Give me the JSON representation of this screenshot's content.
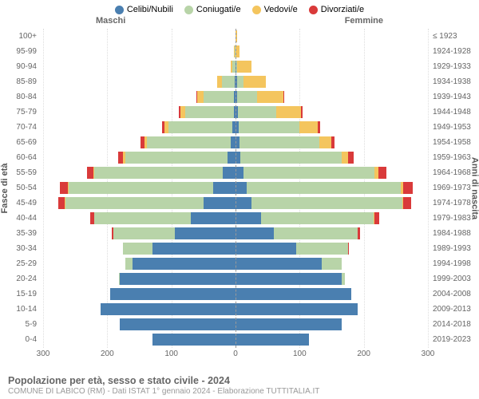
{
  "legend": [
    {
      "label": "Celibi/Nubili",
      "color": "#4a7fb0"
    },
    {
      "label": "Coniugati/e",
      "color": "#b8d4a8"
    },
    {
      "label": "Vedovi/e",
      "color": "#f4c55e"
    },
    {
      "label": "Divorziati/e",
      "color": "#d93a3a"
    }
  ],
  "header_male": "Maschi",
  "header_female": "Femmine",
  "y_title_left": "Fasce di età",
  "y_title_right": "Anni di nascita",
  "x_max": 300,
  "x_ticks": [
    300,
    200,
    100,
    0,
    100,
    200,
    300
  ],
  "title": "Popolazione per età, sesso e stato civile - 2024",
  "subtitle": "COMUNE DI LABICO (RM) - Dati ISTAT 1° gennaio 2024 - Elaborazione TUTTITALIA.IT",
  "colors": {
    "single": "#4a7fb0",
    "married": "#b8d4a8",
    "widowed": "#f4c55e",
    "divorced": "#d93a3a",
    "grid": "#dddddd",
    "center": "#999999",
    "text": "#666666"
  },
  "rows": [
    {
      "age": "100+",
      "birth": "≤ 1923",
      "m": {
        "s": 0,
        "c": 0,
        "w": 0,
        "d": 0
      },
      "f": {
        "s": 0,
        "c": 0,
        "w": 2,
        "d": 0
      }
    },
    {
      "age": "95-99",
      "birth": "1924-1928",
      "m": {
        "s": 0,
        "c": 1,
        "w": 1,
        "d": 0
      },
      "f": {
        "s": 0,
        "c": 0,
        "w": 6,
        "d": 0
      }
    },
    {
      "age": "90-94",
      "birth": "1929-1933",
      "m": {
        "s": 0,
        "c": 5,
        "w": 3,
        "d": 0
      },
      "f": {
        "s": 1,
        "c": 2,
        "w": 22,
        "d": 0
      }
    },
    {
      "age": "85-89",
      "birth": "1934-1938",
      "m": {
        "s": 1,
        "c": 20,
        "w": 8,
        "d": 0
      },
      "f": {
        "s": 2,
        "c": 10,
        "w": 35,
        "d": 0
      }
    },
    {
      "age": "80-84",
      "birth": "1939-1943",
      "m": {
        "s": 2,
        "c": 48,
        "w": 10,
        "d": 1
      },
      "f": {
        "s": 3,
        "c": 30,
        "w": 42,
        "d": 1
      }
    },
    {
      "age": "75-79",
      "birth": "1944-1948",
      "m": {
        "s": 3,
        "c": 75,
        "w": 8,
        "d": 2
      },
      "f": {
        "s": 4,
        "c": 60,
        "w": 38,
        "d": 2
      }
    },
    {
      "age": "70-74",
      "birth": "1949-1953",
      "m": {
        "s": 5,
        "c": 100,
        "w": 6,
        "d": 4
      },
      "f": {
        "s": 5,
        "c": 95,
        "w": 28,
        "d": 4
      }
    },
    {
      "age": "65-69",
      "birth": "1954-1958",
      "m": {
        "s": 8,
        "c": 130,
        "w": 4,
        "d": 6
      },
      "f": {
        "s": 6,
        "c": 125,
        "w": 18,
        "d": 6
      }
    },
    {
      "age": "60-64",
      "birth": "1959-1963",
      "m": {
        "s": 12,
        "c": 160,
        "w": 3,
        "d": 8
      },
      "f": {
        "s": 8,
        "c": 158,
        "w": 10,
        "d": 8
      }
    },
    {
      "age": "55-59",
      "birth": "1964-1968",
      "m": {
        "s": 20,
        "c": 200,
        "w": 2,
        "d": 10
      },
      "f": {
        "s": 12,
        "c": 205,
        "w": 6,
        "d": 12
      }
    },
    {
      "age": "50-54",
      "birth": "1969-1973",
      "m": {
        "s": 35,
        "c": 225,
        "w": 2,
        "d": 12
      },
      "f": {
        "s": 18,
        "c": 240,
        "w": 4,
        "d": 14
      }
    },
    {
      "age": "45-49",
      "birth": "1974-1978",
      "m": {
        "s": 50,
        "c": 215,
        "w": 1,
        "d": 10
      },
      "f": {
        "s": 25,
        "c": 235,
        "w": 2,
        "d": 12
      }
    },
    {
      "age": "40-44",
      "birth": "1979-1983",
      "m": {
        "s": 70,
        "c": 150,
        "w": 0,
        "d": 6
      },
      "f": {
        "s": 40,
        "c": 175,
        "w": 1,
        "d": 8
      }
    },
    {
      "age": "35-39",
      "birth": "1984-1988",
      "m": {
        "s": 95,
        "c": 95,
        "w": 0,
        "d": 3
      },
      "f": {
        "s": 60,
        "c": 130,
        "w": 0,
        "d": 4
      }
    },
    {
      "age": "30-34",
      "birth": "1989-1993",
      "m": {
        "s": 130,
        "c": 45,
        "w": 0,
        "d": 1
      },
      "f": {
        "s": 95,
        "c": 80,
        "w": 0,
        "d": 2
      }
    },
    {
      "age": "25-29",
      "birth": "1994-1998",
      "m": {
        "s": 160,
        "c": 12,
        "w": 0,
        "d": 0
      },
      "f": {
        "s": 135,
        "c": 30,
        "w": 0,
        "d": 0
      }
    },
    {
      "age": "20-24",
      "birth": "1999-2003",
      "m": {
        "s": 180,
        "c": 2,
        "w": 0,
        "d": 0
      },
      "f": {
        "s": 165,
        "c": 6,
        "w": 0,
        "d": 0
      }
    },
    {
      "age": "15-19",
      "birth": "2004-2008",
      "m": {
        "s": 195,
        "c": 0,
        "w": 0,
        "d": 0
      },
      "f": {
        "s": 180,
        "c": 0,
        "w": 0,
        "d": 0
      }
    },
    {
      "age": "10-14",
      "birth": "2009-2013",
      "m": {
        "s": 210,
        "c": 0,
        "w": 0,
        "d": 0
      },
      "f": {
        "s": 190,
        "c": 0,
        "w": 0,
        "d": 0
      }
    },
    {
      "age": "5-9",
      "birth": "2014-2018",
      "m": {
        "s": 180,
        "c": 0,
        "w": 0,
        "d": 0
      },
      "f": {
        "s": 165,
        "c": 0,
        "w": 0,
        "d": 0
      }
    },
    {
      "age": "0-4",
      "birth": "2019-2023",
      "m": {
        "s": 130,
        "c": 0,
        "w": 0,
        "d": 0
      },
      "f": {
        "s": 115,
        "c": 0,
        "w": 0,
        "d": 0
      }
    }
  ]
}
